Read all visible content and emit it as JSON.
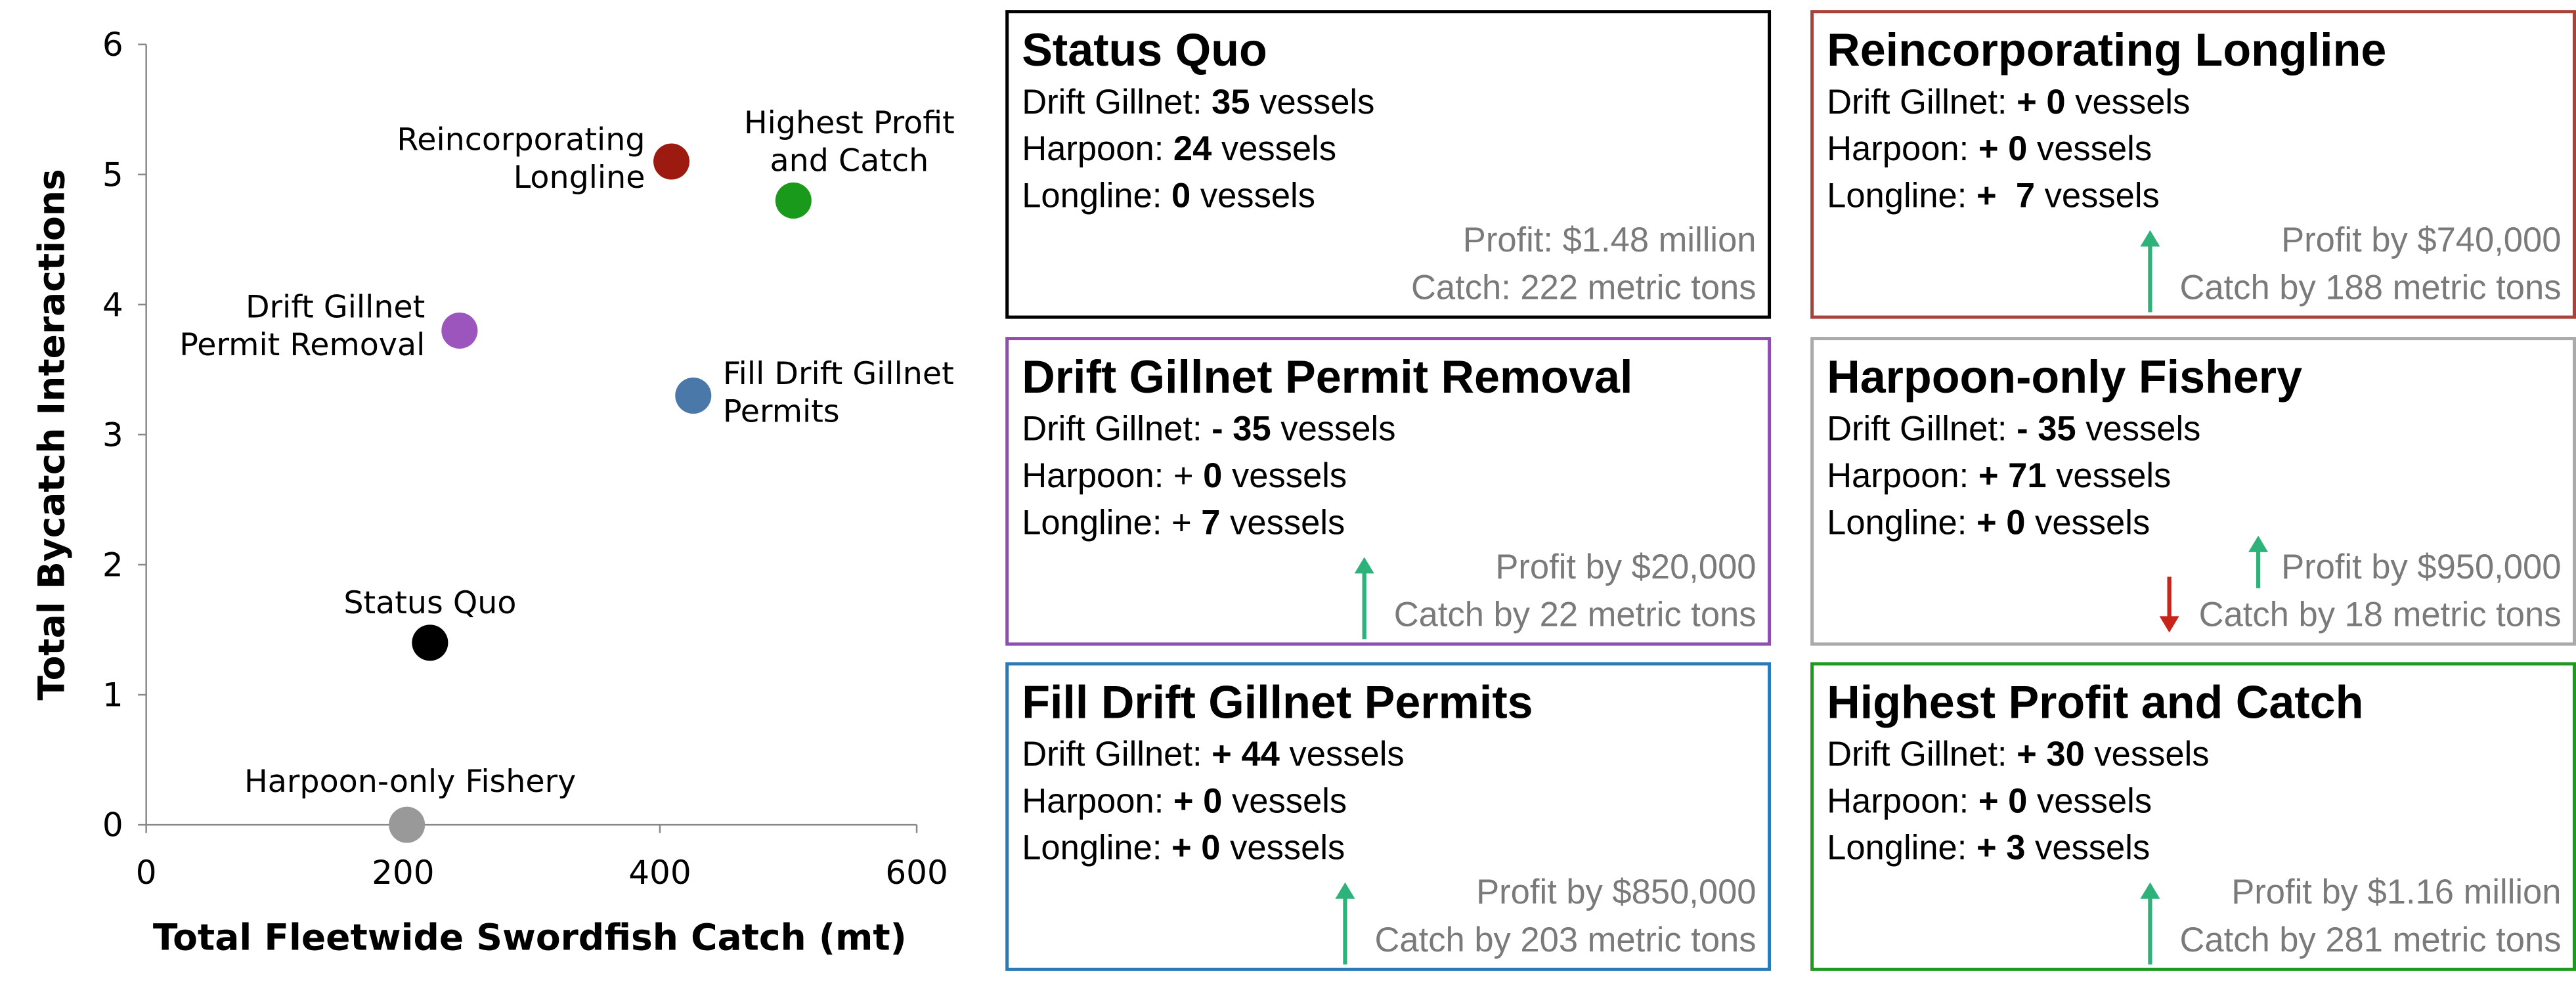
{
  "chart_data": {
    "type": "scatter",
    "xlabel": "Total Fleetwide Swordfish Catch (mt)",
    "ylabel": "Total Bycatch Interactions",
    "x": [
      221,
      203,
      244,
      426,
      409,
      504
    ],
    "values": [
      1.4,
      0,
      3.8,
      3.3,
      5.1,
      4.8
    ],
    "colors": [
      "#000000",
      "#999999",
      "#9b55bd",
      "#4a78a8",
      "#9c1a10",
      "#1a9a1a"
    ],
    "point_labels": [
      [
        "Status Quo"
      ],
      [
        "Harpoon-only Fishery"
      ],
      [
        "Drift Gillnet",
        "Permit Removal"
      ],
      [
        "Fill Drift Gillnet",
        "Permits"
      ],
      [
        "Reincorporating",
        "Longline"
      ],
      [
        "Highest Profit",
        "and Catch"
      ]
    ],
    "xlim": [
      0,
      600
    ],
    "xticks": [
      0,
      200,
      400,
      600
    ],
    "ylim": [
      0,
      6
    ],
    "yticks": [
      0,
      1,
      2,
      3,
      4,
      5,
      6
    ]
  },
  "panels": [
    {
      "title": "Status Quo",
      "border": "#000000",
      "lines": [
        [
          "Drift Gillnet: ",
          "35",
          " vessels"
        ],
        [
          "Harpoon: ",
          "24",
          " vessels"
        ],
        [
          "Longline: ",
          "0",
          " vessels"
        ]
      ],
      "profit": "Profit: $1.48 million",
      "catch": "Catch: 222 metric tons"
    },
    {
      "title": "Reincorporating Longline",
      "border": "#a8433b",
      "lines": [
        [
          "Drift Gillnet: ",
          "+ 0",
          " vessels"
        ],
        [
          "Harpoon: ",
          "+ 0",
          " vessels"
        ],
        [
          "Longline: ",
          "+  7",
          " vessels"
        ]
      ],
      "profit": "Profit by $740,000",
      "catch": "Catch by 188 metric tons",
      "profit_change": "up",
      "catch_change": "up"
    },
    {
      "title": "Drift Gillnet Permit Removal",
      "border": "#8e4fb0",
      "lines": [
        [
          "Drift Gillnet: ",
          "- 35",
          " vessels"
        ],
        [
          "Harpoon: + ",
          "0",
          " vessels"
        ],
        [
          "Longline: + ",
          "7",
          " vessels"
        ]
      ],
      "profit": "Profit by $20,000",
      "catch": "Catch by 22 metric tons",
      "profit_change": "up",
      "catch_change": "up"
    },
    {
      "title": "Harpoon-only Fishery",
      "border": "#aaaaaa",
      "lines": [
        [
          "Drift Gillnet: ",
          "- 35",
          " vessels"
        ],
        [
          "Harpoon: ",
          "+ 71",
          " vessels"
        ],
        [
          "Longline: ",
          "+ 0",
          " vessels"
        ]
      ],
      "profit": "Profit by $950,000",
      "catch": "Catch by 18 metric tons",
      "profit_change": "up",
      "catch_change": "down"
    },
    {
      "title": "Fill Drift Gillnet Permits",
      "border": "#2a7ab8",
      "lines": [
        [
          "Drift Gillnet: ",
          "+ 44",
          " vessels"
        ],
        [
          "Harpoon: ",
          "+ 0",
          " vessels"
        ],
        [
          "Longline: ",
          "+ 0",
          " vessels"
        ]
      ],
      "profit": "Profit by $850,000",
      "catch": "Catch by 203 metric tons",
      "profit_change": "up",
      "catch_change": "up"
    },
    {
      "title": "Highest Profit and Catch",
      "border": "#1e9a1e",
      "lines": [
        [
          "Drift Gillnet: ",
          "+ 30",
          " vessels"
        ],
        [
          "Harpoon: ",
          "+ 0",
          " vessels"
        ],
        [
          "Longline: ",
          "+ 3",
          " vessels"
        ]
      ],
      "profit": "Profit by $1.16 million",
      "catch": "Catch by 281 metric tons",
      "profit_change": "up",
      "catch_change": "up"
    }
  ]
}
